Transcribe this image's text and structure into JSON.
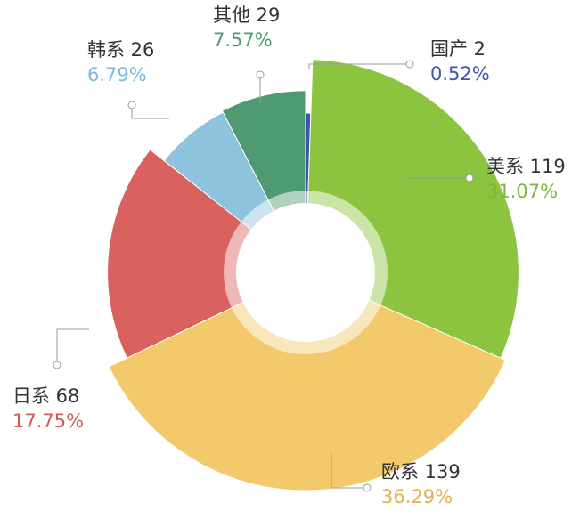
{
  "chart_data": {
    "type": "pie",
    "variant": "rose-donut",
    "title": "",
    "legend": "none",
    "categories": [
      "国产",
      "美系",
      "欧系",
      "日系",
      "韩系",
      "其他"
    ],
    "values": [
      2,
      119,
      139,
      68,
      26,
      29
    ],
    "percentages": [
      "0.52%",
      "31.07%",
      "36.29%",
      "17.75%",
      "6.79%",
      "7.57%"
    ],
    "labels": [
      "国产 2",
      "美系 119",
      "欧系 139",
      "日系 68",
      "韩系 26",
      "其他 29"
    ],
    "colors": [
      "#3f55a8",
      "#8cc43f",
      "#f2c96b",
      "#d9625f",
      "#8ec3de",
      "#4e9a72"
    ],
    "percent_colors": [
      "#3f55a8",
      "#7db735",
      "#e2b24f",
      "#cf5a57",
      "#7fb8d8",
      "#4e9a72"
    ]
  }
}
